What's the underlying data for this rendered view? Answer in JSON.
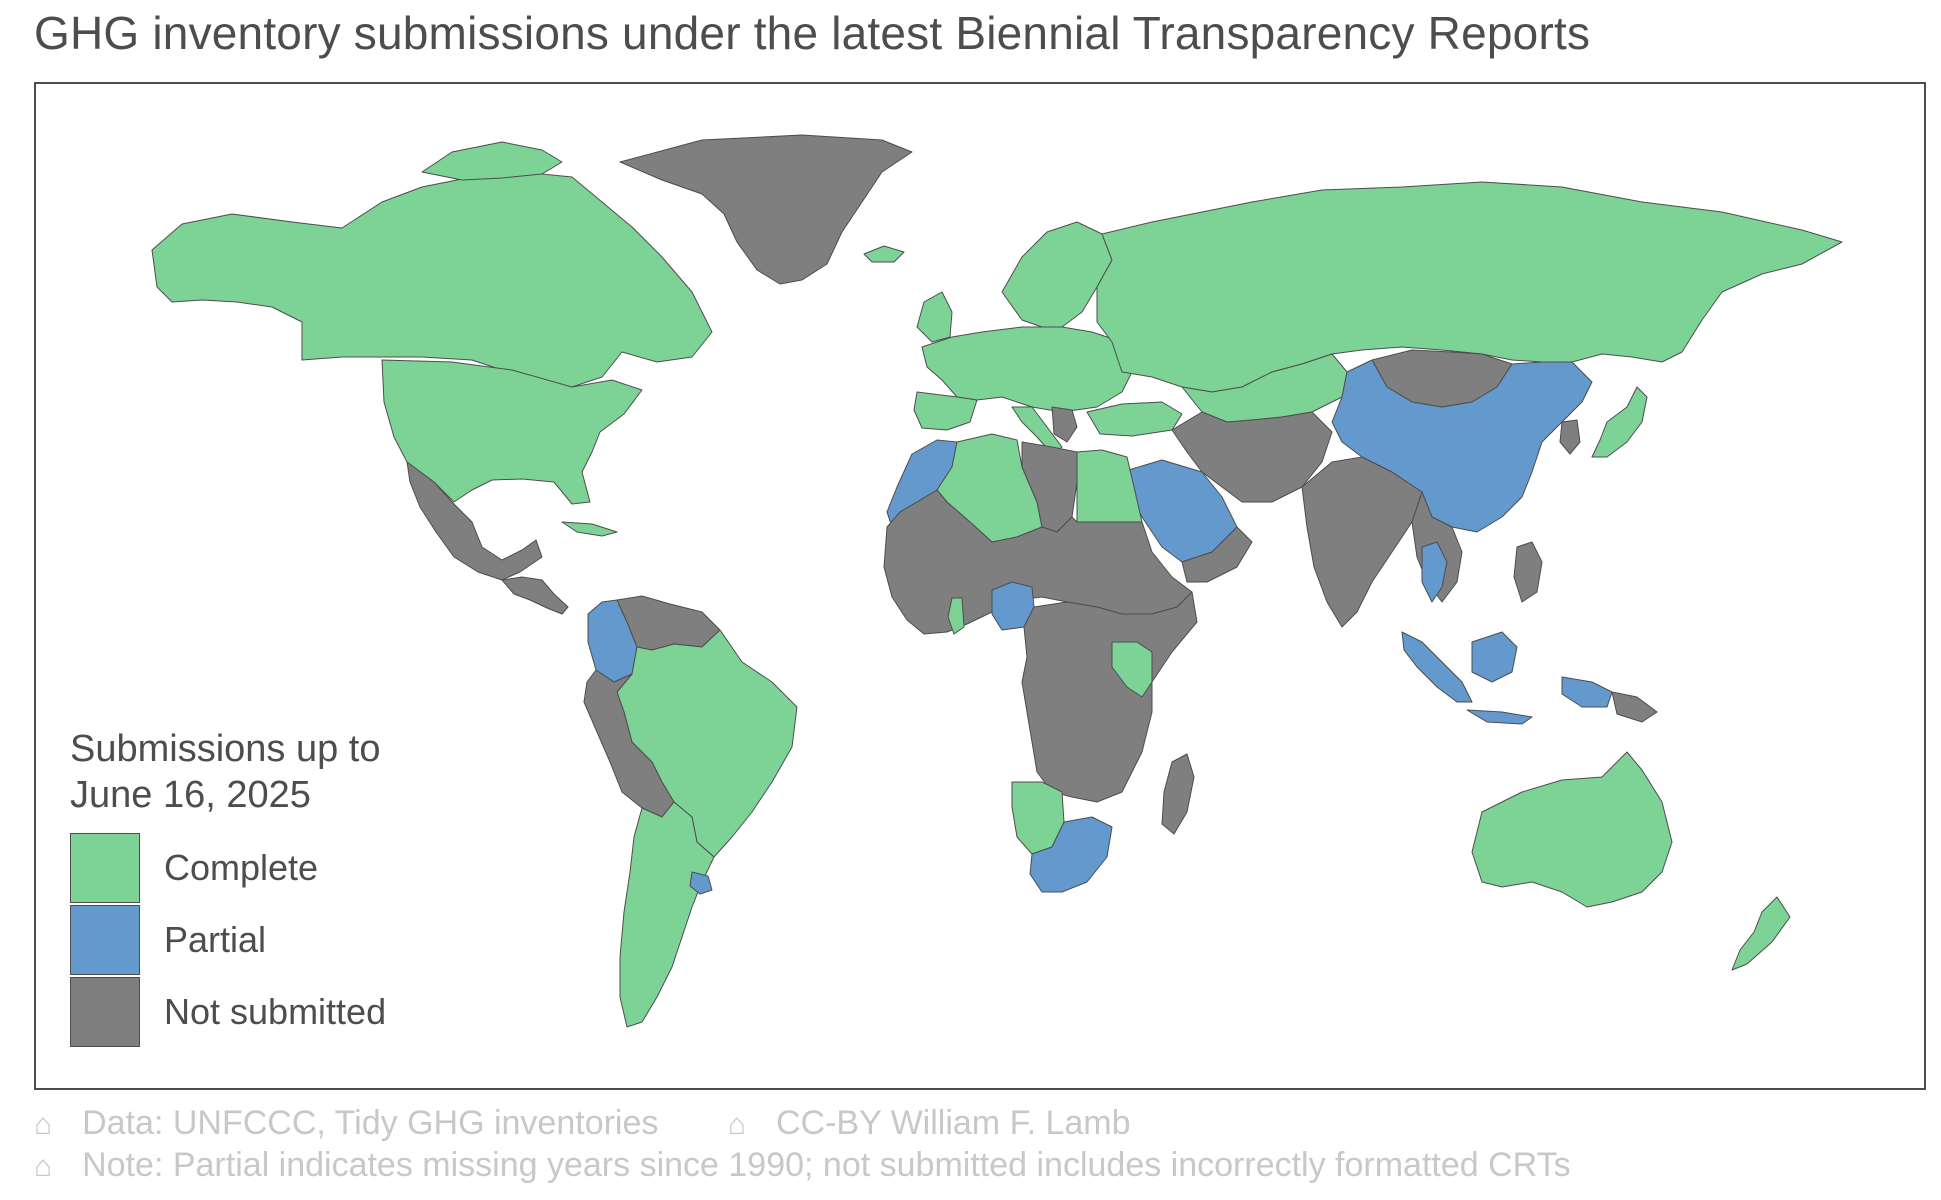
{
  "title": "GHG inventory submissions under the latest Biennial Transparency Reports",
  "colors": {
    "complete": "#7dd395",
    "partial": "#6399cd",
    "not_submitted": "#7f7f7f",
    "border": "#4d4d4d",
    "text": "#4d4d4d",
    "footer": "#c8c8c8"
  },
  "legend": {
    "title_line1": "Submissions up to",
    "title_line2": "June 16, 2025",
    "items": [
      {
        "key": "complete",
        "label": "Complete",
        "color": "#7dd395"
      },
      {
        "key": "partial",
        "label": "Partial",
        "color": "#6399cd"
      },
      {
        "key": "not_submitted",
        "label": "Not submitted",
        "color": "#7f7f7f"
      }
    ]
  },
  "footer": {
    "line1_a": "Data: UNFCCC, Tidy GHG inventories",
    "line1_b": "CC-BY William F. Lamb",
    "line2": "Note: Partial indicates missing years since 1990; not submitted includes incorrectly formatted CRTs",
    "icon": "house-icon"
  }
}
